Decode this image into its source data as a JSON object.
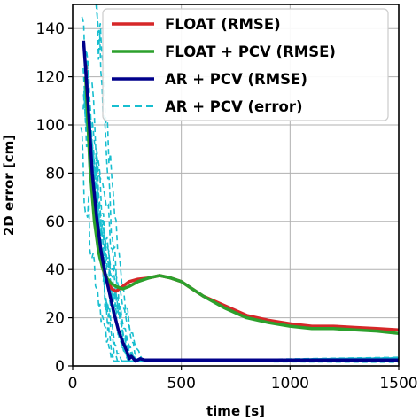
{
  "chart_data": {
    "type": "line",
    "xlabel": "time [s]",
    "ylabel": "2D error [cm]",
    "xlim": [
      0,
      1500
    ],
    "ylim": [
      0,
      150
    ],
    "x_ticks": [
      0,
      500,
      1000,
      1500
    ],
    "y_ticks": [
      0,
      20,
      40,
      60,
      80,
      100,
      120,
      140
    ],
    "grid": true,
    "legend_position": "top-right",
    "series": [
      {
        "name": "FLOAT (RMSE)",
        "color": "#d62728",
        "style": "solid",
        "x": [
          60,
          80,
          100,
          120,
          140,
          160,
          180,
          200,
          230,
          260,
          300,
          350,
          400,
          450,
          500,
          550,
          600,
          700,
          800,
          900,
          1000,
          1100,
          1200,
          1300,
          1400,
          1500
        ],
        "y": [
          125,
          85,
          62,
          48,
          40,
          35,
          32,
          31,
          33,
          35,
          36,
          36.5,
          37.5,
          36.5,
          35,
          32,
          29,
          25,
          21,
          19,
          17.5,
          16.5,
          16.5,
          16,
          15.5,
          15
        ]
      },
      {
        "name": "FLOAT + PCV (RMSE)",
        "color": "#2ca02c",
        "style": "solid",
        "x": [
          60,
          80,
          100,
          120,
          140,
          160,
          180,
          200,
          230,
          260,
          300,
          350,
          400,
          450,
          500,
          550,
          600,
          700,
          800,
          900,
          1000,
          1100,
          1200,
          1300,
          1400,
          1500
        ],
        "y": [
          120,
          82,
          60,
          47,
          40,
          36,
          34,
          33,
          32,
          33,
          35,
          36.5,
          37.5,
          36.5,
          35,
          32,
          29,
          24,
          20,
          18,
          16.5,
          15.5,
          15.5,
          15,
          14.5,
          13.5
        ]
      },
      {
        "name": "AR + PCV (RMSE)",
        "color": "#00008b",
        "style": "solid",
        "x": [
          50,
          70,
          90,
          110,
          130,
          150,
          170,
          190,
          210,
          230,
          250,
          260,
          270,
          280,
          290,
          310,
          330,
          400,
          600,
          800,
          1000,
          1200,
          1500
        ],
        "y": [
          135,
          110,
          80,
          62,
          48,
          38,
          30,
          22,
          15,
          10,
          6,
          3,
          4,
          3,
          2,
          3,
          2.5,
          2.5,
          2.5,
          2.5,
          2.5,
          2.5,
          2.5
        ]
      },
      {
        "name": "AR + PCV (error)",
        "color": "#17becf",
        "style": "dashed",
        "x": [],
        "y": []
      }
    ]
  }
}
